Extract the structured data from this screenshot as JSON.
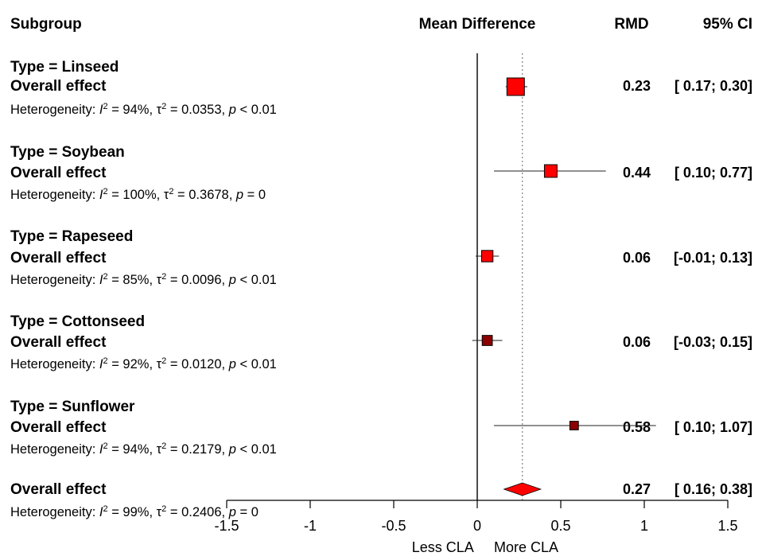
{
  "chart_data": {
    "type": "forest",
    "headers": {
      "subgroup": "Subgroup",
      "mean_difference": "Mean Difference",
      "rmd": "RMD",
      "ci": "95% CI"
    },
    "overall_label": "Overall effect",
    "heterogeneity_prefix": "Heterogeneity: ",
    "subgroups": [
      {
        "title": "Type = Linseed",
        "rmd": 0.23,
        "lower": 0.17,
        "upper": 0.3,
        "rmd_text": "0.23",
        "ci_text": "[ 0.17;  0.30]",
        "weight": 1.0,
        "i2": "94%",
        "tau2": "0.0353",
        "p": "< 0.01"
      },
      {
        "title": "Type = Soybean",
        "rmd": 0.44,
        "lower": 0.1,
        "upper": 0.77,
        "rmd_text": "0.44",
        "ci_text": "[ 0.10;  0.77]",
        "weight": 0.62,
        "i2": "100%",
        "tau2": "0.3678",
        "p": "= 0"
      },
      {
        "title": "Type = Rapeseed",
        "rmd": 0.06,
        "lower": -0.01,
        "upper": 0.13,
        "rmd_text": "0.06",
        "ci_text": "[-0.01;  0.13]",
        "weight": 0.52,
        "i2": "85%",
        "tau2": "0.0096",
        "p": "< 0.01"
      },
      {
        "title": "Type = Cottonseed",
        "rmd": 0.06,
        "lower": -0.03,
        "upper": 0.15,
        "rmd_text": "0.06",
        "ci_text": "[-0.03;  0.15]",
        "weight": 0.42,
        "i2": "92%",
        "tau2": "0.0120",
        "p": "< 0.01"
      },
      {
        "title": "Type = Sunflower",
        "rmd": 0.58,
        "lower": 0.1,
        "upper": 1.07,
        "rmd_text": "0.58",
        "ci_text": "[ 0.10;  1.07]",
        "weight": 0.3,
        "i2": "94%",
        "tau2": "0.2179",
        "p": "< 0.01"
      }
    ],
    "overall": {
      "rmd": 0.27,
      "lower": 0.16,
      "upper": 0.38,
      "rmd_text": "0.27",
      "ci_text": "[ 0.16;  0.38]",
      "i2": "99%",
      "tau2": "0.2406",
      "p": "= 0"
    },
    "x_axis": {
      "ticks": [
        -1.5,
        -1,
        -0.5,
        0,
        0.5,
        1,
        1.5
      ],
      "tick_labels": [
        "-1.5",
        "-1",
        "-0.5",
        "0",
        "0.5",
        "1",
        "1.5"
      ],
      "xlim": [
        -1.5,
        1.5
      ],
      "left_label": "Less CLA",
      "right_label": "More CLA"
    },
    "colors": {
      "box_fill": "#ff0000",
      "box_fill_dark": "#8b0000",
      "diamond_fill": "#ff0000",
      "reference_line": "#808080"
    }
  }
}
